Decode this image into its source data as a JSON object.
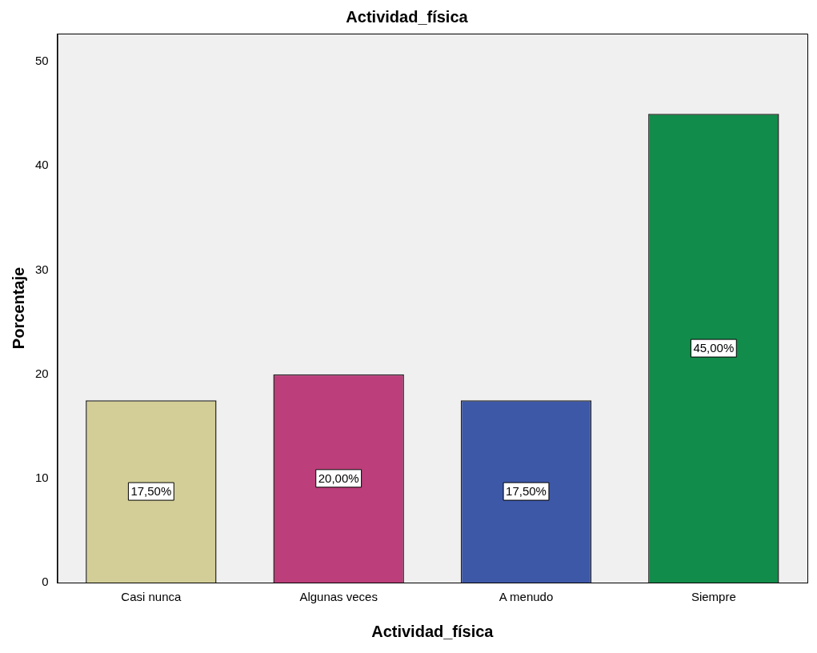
{
  "chart_data": {
    "type": "bar",
    "title": "Actividad_física",
    "xlabel": "Actividad_física",
    "ylabel": "Porcentaje",
    "categories": [
      "Casi nunca",
      "Algunas veces",
      "A menudo",
      "Siempre"
    ],
    "values": [
      17.5,
      20,
      17.5,
      45
    ],
    "colors": [
      "#d3ce97",
      "#bc3e7a",
      "#3e58a8",
      "#118c4a"
    ],
    "value_labels": [
      "17,50%",
      "20,00%",
      "17,50%",
      "45,00%"
    ],
    "ylim": [
      0,
      52.7
    ],
    "yticks": [
      0,
      10,
      20,
      30,
      40,
      50
    ],
    "grid": false,
    "legend": false
  }
}
